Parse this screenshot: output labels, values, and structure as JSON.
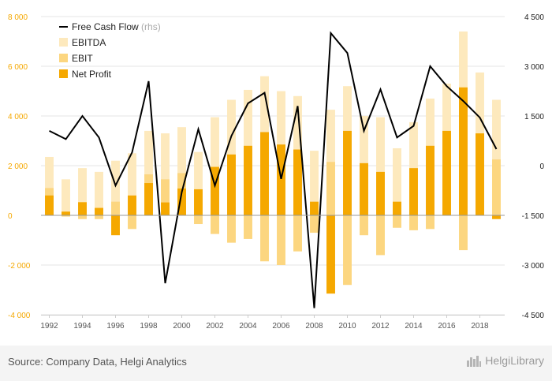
{
  "chart_data": {
    "type": "bar",
    "title": "",
    "xlabel": "",
    "ylabel": "",
    "y_left_range": [
      -4000,
      8000
    ],
    "y_right_range": [
      -4500,
      4500
    ],
    "y_left_ticks": [
      8000,
      6000,
      4000,
      2000,
      0,
      -2000,
      -4000
    ],
    "y_left_tick_labels": [
      "8 000",
      "6 000",
      "4 000",
      "2 000",
      "0",
      "-2 000",
      "-4 000"
    ],
    "y_right_ticks": [
      4500,
      3000,
      1500,
      0,
      -1500,
      -3000,
      -4500
    ],
    "y_right_tick_labels": [
      "4 500",
      "3 000",
      "1 500",
      "0",
      "-1 500",
      "-3 000",
      "-4 500"
    ],
    "x_tick_labels": [
      "1992",
      "1994",
      "1996",
      "1998",
      "2000",
      "2002",
      "2004",
      "2006",
      "2008",
      "2010",
      "2012",
      "2014",
      "2016",
      "2018"
    ],
    "categories": [
      "1992",
      "1993",
      "1994",
      "1995",
      "1996",
      "1997",
      "1998",
      "1999",
      "2000",
      "2001",
      "2002",
      "2003",
      "2004",
      "2005",
      "2006",
      "2007",
      "2008",
      "2009",
      "2010",
      "2011",
      "2012",
      "2013",
      "2014",
      "2015",
      "2016",
      "2017",
      "2018",
      "2019"
    ],
    "series": [
      {
        "name": "EBITDA",
        "axis": "left",
        "kind": "bar",
        "color": "#fde9bd",
        "values": [
          2350,
          1450,
          1900,
          1750,
          2200,
          2500,
          3400,
          3300,
          3550,
          2550,
          3950,
          4650,
          5050,
          5600,
          5000,
          4800,
          2600,
          4250,
          5200,
          4000,
          3950,
          2700,
          3750,
          4700,
          5300,
          7400,
          5750,
          4650
        ]
      },
      {
        "name": "EBIT",
        "axis": "left",
        "kind": "bar",
        "color": "#fcd680",
        "values": [
          1100,
          -50,
          -150,
          -150,
          550,
          -550,
          1650,
          1450,
          1700,
          -350,
          -750,
          -1100,
          -950,
          -1850,
          -2000,
          -1450,
          -700,
          2150,
          -2800,
          -800,
          -1600,
          -500,
          -600,
          -550,
          0,
          -1400,
          250,
          2250
        ]
      },
      {
        "name": "Net Profit",
        "axis": "left",
        "kind": "bar",
        "color": "#f5a800",
        "values": [
          800,
          150,
          530,
          300,
          -800,
          800,
          1300,
          520,
          1080,
          1050,
          1950,
          2450,
          2800,
          3350,
          2850,
          2650,
          550,
          -3150,
          3400,
          2100,
          1750,
          550,
          1900,
          2800,
          3400,
          5150,
          3300,
          -150
        ]
      },
      {
        "name": "Free Cash Flow",
        "name_suffix": "(rhs)",
        "axis": "right",
        "kind": "line",
        "color": "#000000",
        "values": [
          1050,
          800,
          1500,
          850,
          -600,
          400,
          2550,
          -3550,
          -800,
          1100,
          -600,
          900,
          1880,
          2200,
          -400,
          1800,
          -4300,
          4000,
          3400,
          1050,
          2300,
          850,
          1200,
          3000,
          2400,
          1950,
          1450,
          500
        ]
      }
    ],
    "legend": {
      "placement": "top-left",
      "order": [
        "Free Cash Flow",
        "EBITDA",
        "EBIT",
        "Net Profit"
      ]
    },
    "grid": {
      "horizontal": true,
      "vertical": false,
      "color": "#e5e5e5"
    },
    "colors": {
      "left_axis_text": "#f5a800",
      "right_axis_text": "#222222",
      "x_axis_text": "#555555",
      "zero_line": "#999999"
    }
  },
  "footer": {
    "source": "Source: Company Data, Helgi Analytics",
    "logo_text": "HelgiLibrary"
  }
}
